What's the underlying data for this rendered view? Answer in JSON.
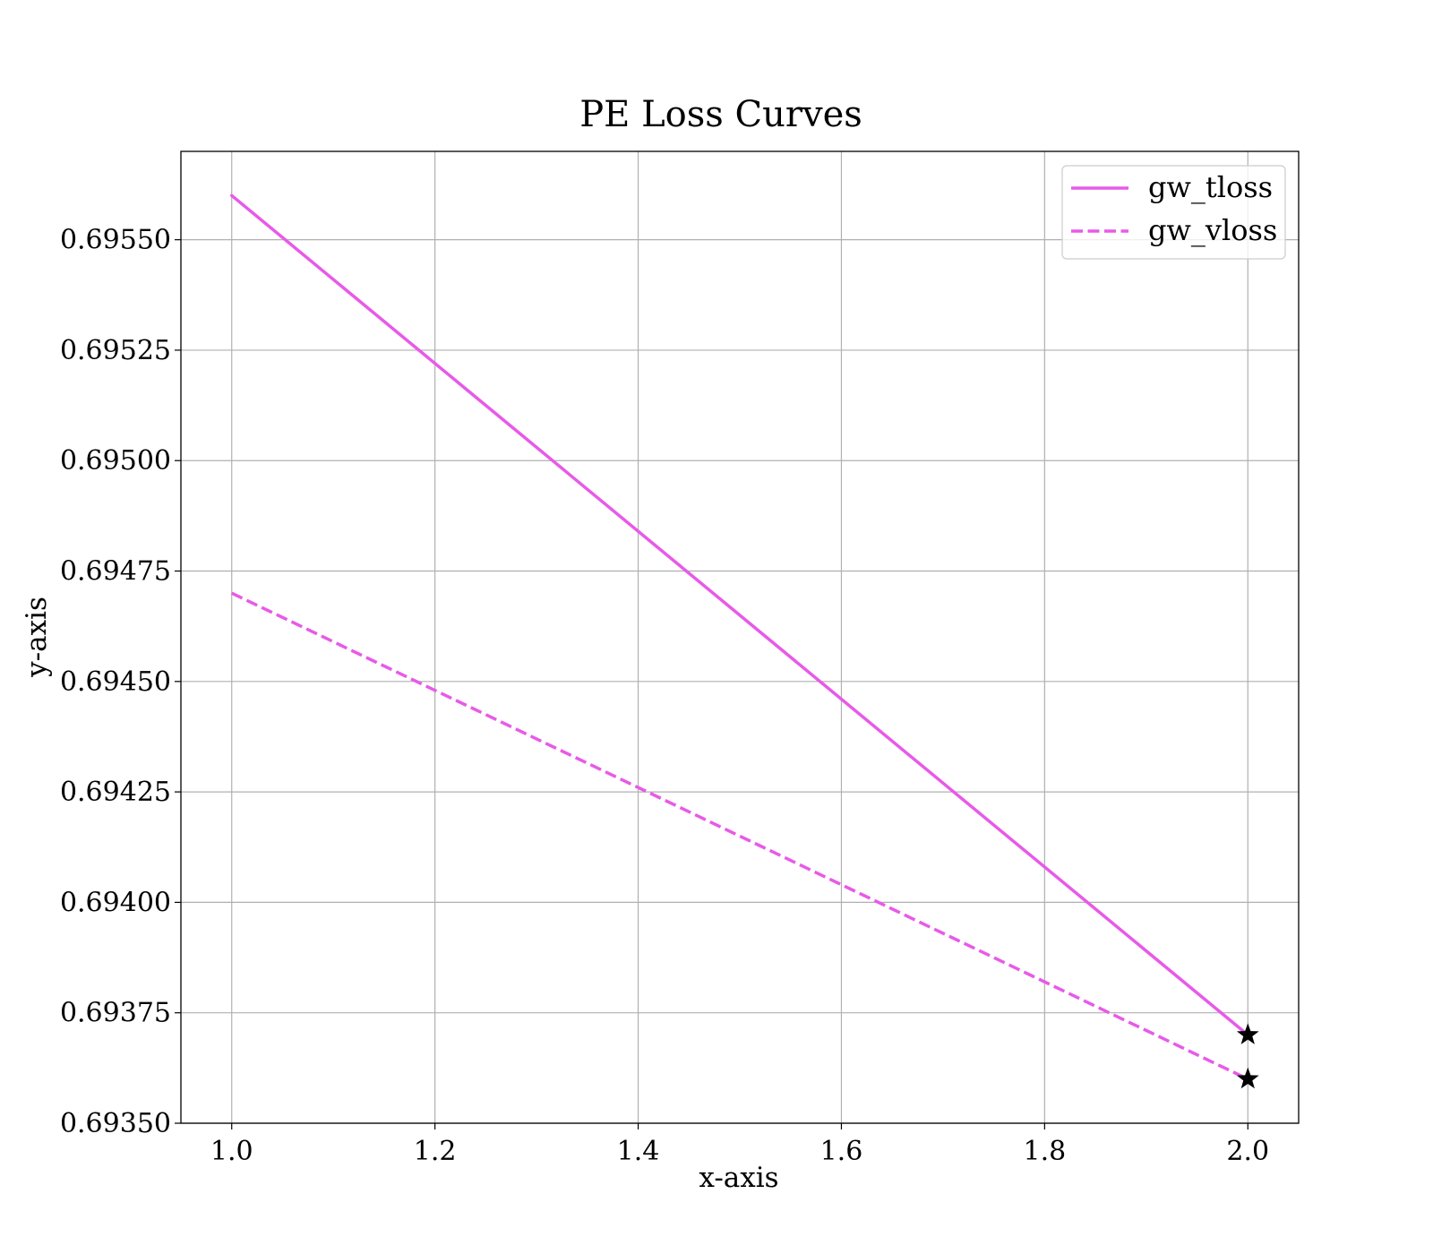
{
  "chart_data": {
    "type": "line",
    "title": "PE Loss Curves",
    "xlabel": "x-axis",
    "ylabel": "y-axis",
    "xlim": [
      0.95,
      2.05
    ],
    "ylim": [
      0.6935,
      0.6957
    ],
    "xticks": [
      1.0,
      1.2,
      1.4,
      1.6,
      1.8,
      2.0
    ],
    "xtick_labels": [
      "1.0",
      "1.2",
      "1.4",
      "1.6",
      "1.8",
      "2.0"
    ],
    "yticks": [
      0.6935,
      0.69375,
      0.694,
      0.69425,
      0.6945,
      0.69475,
      0.695,
      0.69525,
      0.6955
    ],
    "ytick_labels": [
      "0.69350",
      "0.69375",
      "0.69400",
      "0.69425",
      "0.69450",
      "0.69475",
      "0.69500",
      "0.69525",
      "0.69550"
    ],
    "grid": true,
    "legend_position": "top-right",
    "series": [
      {
        "name": "gw_tloss",
        "x": [
          1,
          2
        ],
        "y": [
          0.6956,
          0.6937
        ],
        "color": "#e85ae8",
        "style": "solid",
        "end_marker": "star"
      },
      {
        "name": "gw_vloss",
        "x": [
          1,
          2
        ],
        "y": [
          0.6947,
          0.6936
        ],
        "color": "#e85ae8",
        "style": "dashed",
        "end_marker": "star"
      }
    ]
  }
}
